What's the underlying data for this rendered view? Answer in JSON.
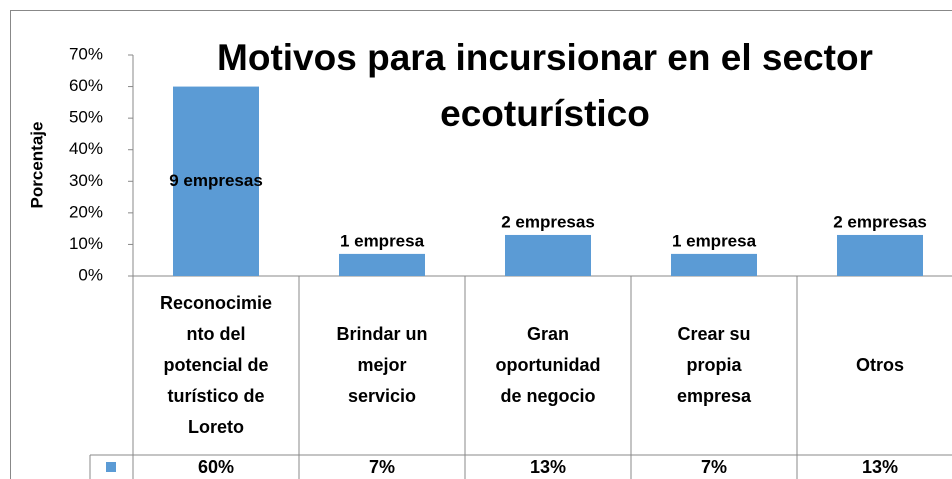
{
  "chart_data": {
    "type": "bar",
    "title": "Motivos para incursionar en el sector ecoturístico",
    "y_label": "Porcentaje",
    "categories": [
      "Reconocimie\nnto del\npotencial de\nturístico de\nLoreto",
      "Brindar un\nmejor\nservicio",
      "Gran\noportunidad\nde negocio",
      "Crear su\npropia\nempresa",
      "Otros"
    ],
    "values": [
      60,
      7,
      13,
      7,
      13
    ],
    "value_labels": [
      "60%",
      "7%",
      "13%",
      "7%",
      "13%"
    ],
    "annotations": [
      "9 empresas",
      "1 empresa",
      "2 empresas",
      "1 empresa",
      "2 empresas"
    ],
    "color": "#5b9bd5",
    "ylim": [
      0,
      70
    ],
    "yticks": [
      {
        "value": 0,
        "label": "0%"
      },
      {
        "value": 10,
        "label": "10%"
      },
      {
        "value": 20,
        "label": "20%"
      },
      {
        "value": 30,
        "label": "30%"
      },
      {
        "value": 40,
        "label": "40%"
      },
      {
        "value": 50,
        "label": "50%"
      },
      {
        "value": 60,
        "label": "60%"
      },
      {
        "value": 70,
        "label": "70%"
      }
    ],
    "grid": false
  }
}
